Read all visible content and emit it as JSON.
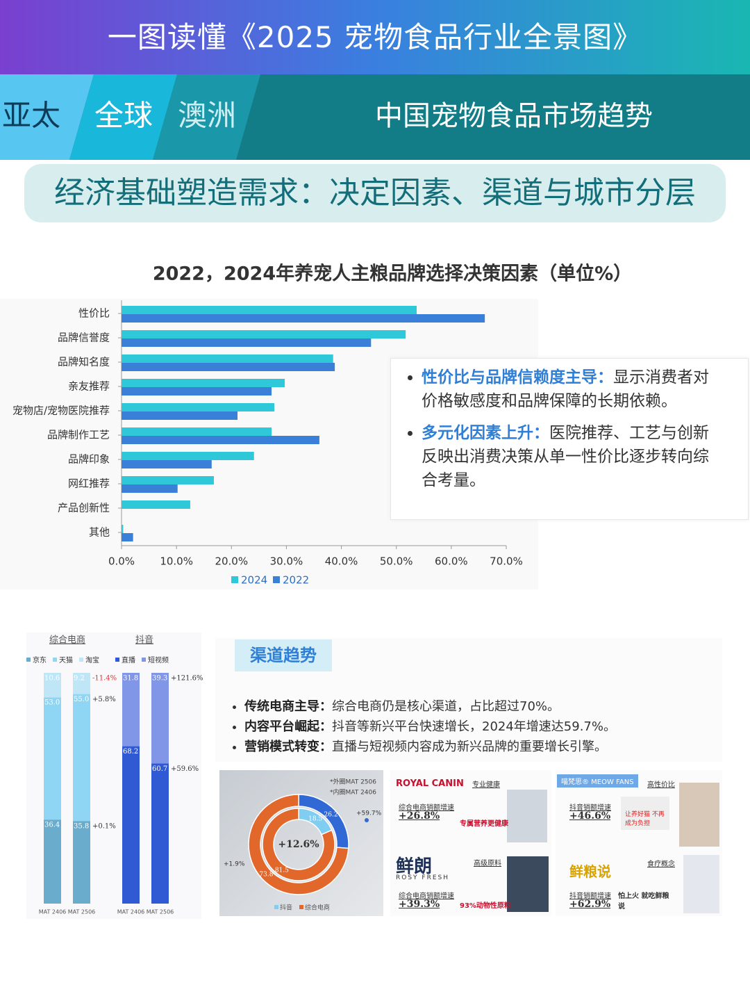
{
  "header": {
    "title": "一图读懂《2025 宠物食品行业全景图》",
    "tabs": [
      "亚太",
      "全球",
      "澳洲"
    ],
    "section": "中国宠物食品市场趋势",
    "subtitle": "经济基础塑造需求：决定因素、渠道与城市分层"
  },
  "chart_data": [
    {
      "type": "hbar",
      "title": "2022，2024年养宠人主粮品牌选择决策因素（单位%）",
      "categories": [
        "性价比",
        "品牌信誉度",
        "品牌知名度",
        "亲友推荐",
        "宠物店/宠物医院推荐",
        "品牌制作工艺",
        "品牌印象",
        "网红推荐",
        "产品创新性",
        "其他"
      ],
      "series": [
        {
          "name": "2024",
          "color": "#2ec8d8",
          "values": [
            53.7,
            51.7,
            38.5,
            29.7,
            27.8,
            27.3,
            24.1,
            16.8,
            12.5,
            0.3
          ]
        },
        {
          "name": "2022",
          "color": "#3a7fd8",
          "values": [
            66.1,
            45.4,
            38.8,
            27.3,
            21.1,
            36.0,
            16.4,
            10.2,
            null,
            2.1
          ]
        }
      ],
      "xlim": [
        0,
        70
      ],
      "xticks": [
        {
          "value": 0,
          "label": "0.0%"
        },
        {
          "value": 10,
          "label": "10.0%"
        },
        {
          "value": 20,
          "label": "20.0%"
        },
        {
          "value": 30,
          "label": "30.0%"
        },
        {
          "value": 40,
          "label": "40.0%"
        },
        {
          "value": 50,
          "label": "50.0%"
        },
        {
          "value": 60,
          "label": "60.0%"
        },
        {
          "value": 70,
          "label": "70.0%"
        }
      ]
    },
    {
      "type": "stacked",
      "title": "综合电商",
      "categories": [
        "MAT 2406",
        "MAT 2506"
      ],
      "ylim": [
        0,
        100
      ],
      "series": [
        {
          "name": "京东",
          "color": "#6aaccc",
          "values": [
            36.4,
            35.8
          ],
          "value_labels": [
            "36.4",
            "35.8"
          ],
          "change": "+0.1%"
        },
        {
          "name": "天猫",
          "color": "#8ed6f4",
          "values": [
            53.0,
            55.0
          ],
          "value_labels": [
            "53.0",
            "55.0"
          ],
          "change": "+5.8%"
        },
        {
          "name": "淘宝",
          "color": "#bfe6f7",
          "values": [
            10.6,
            9.2
          ],
          "value_labels": [
            "10.6",
            "9.2"
          ],
          "change": "-11.4%"
        }
      ]
    },
    {
      "type": "stacked",
      "title": "抖音",
      "categories": [
        "MAT 2406",
        "MAT 2506"
      ],
      "ylim": [
        0,
        100
      ],
      "series": [
        {
          "name": "直播",
          "color": "#3059d4",
          "values": [
            68.2,
            60.7
          ],
          "value_labels": [
            "68.2",
            "60.7"
          ],
          "change": "+59.6%"
        },
        {
          "name": "短视频",
          "color": "#8196e6",
          "values": [
            31.8,
            39.3
          ],
          "value_labels": [
            "31.8",
            "39.3"
          ],
          "change": "+121.6%"
        }
      ]
    },
    {
      "type": "donut",
      "categories": [
        "抖音",
        "综合电商"
      ],
      "series": [
        {
          "name": "*外圈MAT 2506",
          "values": [
            26.2,
            73.8
          ],
          "colors": [
            "#3068d6",
            "#e2672b"
          ]
        },
        {
          "name": "*内圈MAT 2406",
          "values": [
            18.5,
            81.5
          ],
          "colors": [
            "#80cdf2",
            "#e2672b"
          ]
        }
      ],
      "center_label": "+12.6%",
      "annotations": [
        "+59.7%",
        "+1.9%"
      ]
    }
  ],
  "insights": [
    {
      "head": "性价比与品牌信赖度主导：",
      "body": "显示消费者对价格敏感度和品牌保障的长期依赖。"
    },
    {
      "head": "多元化因素上升：",
      "body": "医院推荐、工艺与创新反映出消费决策从单一性价比逐步转向综合考量。"
    }
  ],
  "channel": {
    "title": "渠道趋势",
    "bullets": [
      {
        "head": "传统电商主导：",
        "body": "综合电商仍是核心渠道，占比超过70%。"
      },
      {
        "head": "内容平台崛起：",
        "body": "抖音等新兴平台快速增长，2024年增速达59.7%。"
      },
      {
        "head": "营销模式转变：",
        "body": "直播与短视频内容成为新兴品牌的重要增长引擎。"
      }
    ]
  },
  "brands": [
    {
      "brand": "ROYAL CANIN",
      "tag": "专业健康",
      "metric_label": "综合电商销额增速",
      "metric": "+26.8%",
      "note": "专属营养更健康"
    },
    {
      "brand": "喵梵思® MEOW FANS",
      "tag": "高性价比",
      "metric_label": "抖音销额增速",
      "metric": "+46.6%",
      "note": "让养好猫 不再成为负担"
    },
    {
      "brand": "鲜朗",
      "sub": "ROSY FRESH",
      "tag": "高级原料",
      "metric_label": "综合电商销额增速",
      "metric": "+39.3%",
      "note": "93%动物性原料"
    },
    {
      "brand": "鲜粮说",
      "tag": "食疗概念",
      "metric_label": "抖音销额增速",
      "metric": "+62.9%",
      "note": "怕上火 就吃鲜粮说"
    }
  ]
}
